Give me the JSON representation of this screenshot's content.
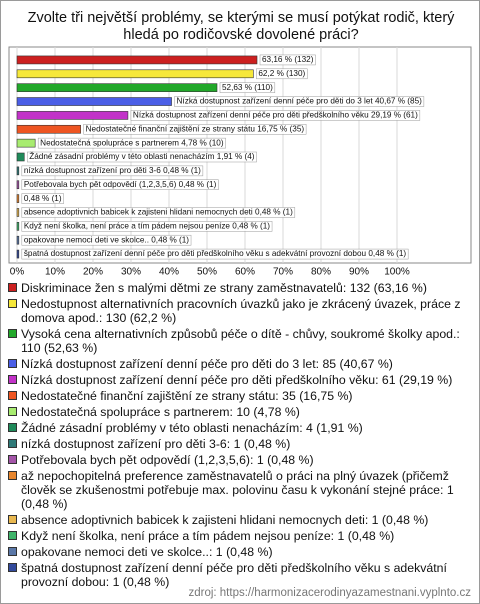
{
  "chart_data": {
    "type": "bar",
    "orientation": "horizontal",
    "title": "Zvolte tři největší problémy, se kterými se musí potýkat rodič, který hledá po rodičovské dovolené práci?",
    "values": [
      63.16,
      62.2,
      52.63,
      40.67,
      29.19,
      16.75,
      4.78,
      1.91,
      0.48,
      0.48,
      0.48,
      0.48,
      0.48,
      0.48,
      0.48
    ],
    "value_labels": [
      "63,16 % (132)",
      "62,2 % (130)",
      "52,63 % (110)",
      "Nízká dostupnost zařízení denní péče pro děti do 3 let 40,67 % (85)",
      "Nízká dostupnost zařízení denní péče pro děti předškolního věku 29,19 % (61)",
      "Nedostatečné finanční zajištění ze strany státu 16,75 % (35)",
      "Nedostatečná spolupráce s partnerem 4,78 % (10)",
      "Žádné zásadní problémy v této oblasti nenacházím 1,91 % (4)",
      "nízká dostupnost zařízení pro děti 3-6 0,48 % (1)",
      "Potřebovala bych pět odpovědí (1,2,3,5,6) 0,48 % (1)",
      "0,48 % (1)",
      "absence adoptivnich babicek k zajisteni hlidani nemocnych deti 0,48 % (1)",
      "Když není školka, není práce a tím pádem nejsou peníze 0,48 % (1)",
      "opakovane nemoci deti ve skolce.. 0,48 % (1)",
      "špatná dostupnost zařízení denní péče pro děti předškolního věku s adekvátní provozní dobou 0,48 % (1)"
    ],
    "colors": [
      "#cc2020",
      "#f6e83a",
      "#22a82a",
      "#4a5ee6",
      "#c232c8",
      "#ee5522",
      "#a8ec70",
      "#1f8a5a",
      "#2f7a78",
      "#a455a8",
      "#e8862e",
      "#e9b850",
      "#3fb46a",
      "#5b78a8",
      "#324a9c"
    ],
    "legend_labels": [
      "Diskriminace žen s malými dětmi ze strany zaměstnavatelů: 132 (63,16 %)",
      "Nedostupnost alternativních pracovních úvazků jako je zkrácený úvazek, práce z domova apod.: 130 (62,2 %)",
      "Vysoká cena alternativních způsobů péče o dítě - chůvy, soukromé školky apod.: 110 (52,63 %)",
      "Nízká dostupnost zařízení denní péče pro děti do 3 let: 85 (40,67 %)",
      "Nízká dostupnost zařízení denní péče pro děti předškolního věku: 61 (29,19 %)",
      "Nedostatečné finanční zajištění ze strany státu: 35 (16,75 %)",
      "Nedostatečná spolupráce s partnerem: 10 (4,78 %)",
      "Žádné zásadní problémy v této oblasti nenacházím: 4 (1,91 %)",
      "nízká dostupnost zařízení pro děti 3-6: 1 (0,48 %)",
      "Potřebovala bych pět odpovědí (1,2,3,5,6): 1 (0,48 %)",
      "až nepochopitelná preference zaměstnavatelů o práci na plný úvazek (přičemž člověk se zkušenostmi potřebuje max. polovinu času k vykonání stejné práce: 1 (0,48 %)",
      "absence adoptivnich babicek k zajisteni hlidani nemocnych deti: 1 (0,48 %)",
      "Když není školka, není práce a tím pádem nejsou peníze: 1 (0,48 %)",
      "opakovane nemoci deti ve skolce..: 1 (0,48 %)",
      "špatná dostupnost zařízení denní péče pro děti předškolního věku s adekvátní provozní dobou: 1 (0,48 %)"
    ],
    "xlim": [
      0,
      100
    ],
    "xticks": [
      {
        "value": 0,
        "label": "0%"
      },
      {
        "value": 10,
        "label": "10%"
      },
      {
        "value": 20,
        "label": "20%"
      },
      {
        "value": 30,
        "label": "30%"
      },
      {
        "value": 40,
        "label": "40%"
      },
      {
        "value": 50,
        "label": "50%"
      },
      {
        "value": 60,
        "label": "60%"
      },
      {
        "value": 70,
        "label": "70%"
      },
      {
        "value": 80,
        "label": "80%"
      },
      {
        "value": 90,
        "label": "90%"
      },
      {
        "value": 100,
        "label": "100%"
      }
    ],
    "grid": true,
    "source": "zdroj: https://harmonizacerodinyazamestnani.vyplnto.cz"
  }
}
